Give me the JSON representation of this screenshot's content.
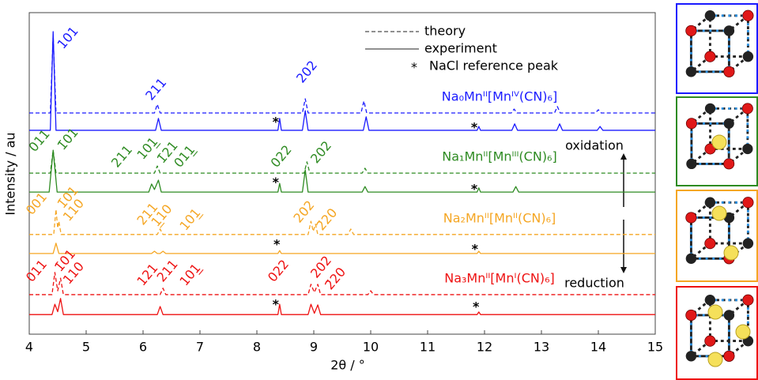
{
  "chart_data": {
    "type": "line",
    "xlabel": "2θ / °",
    "ylabel": "Intensity / au",
    "xlim": [
      4,
      15
    ],
    "xticks": [
      4,
      5,
      6,
      7,
      8,
      9,
      10,
      11,
      12,
      13,
      14,
      15
    ],
    "ylim": [
      0,
      100
    ],
    "legend": {
      "theory": "theory",
      "experiment": "experiment",
      "marker": "*",
      "reference": "NaCl reference peak"
    },
    "oxidation": "oxidation",
    "reduction": "reduction",
    "traces": [
      {
        "label": "Na₀Mnᴵᴵ[Mnᴵⱽ(CN)₆]",
        "color": "#1a1aff",
        "theory": {
          "x": [
            4,
            4.37,
            4.42,
            4.47,
            6.2,
            6.25,
            6.3,
            8.8,
            8.85,
            8.9,
            9.83,
            9.88,
            9.93,
            12.47,
            12.52,
            12.57,
            13.23,
            13.28,
            13.33,
            13.95,
            14.0,
            14.05,
            15
          ],
          "values": [
            68.8,
            68.8,
            92.9,
            68.8,
            68.8,
            71.5,
            68.8,
            68.8,
            73.2,
            68.8,
            68.8,
            72.5,
            68.8,
            68.8,
            70.0,
            68.8,
            68.8,
            70.8,
            68.8,
            68.8,
            69.8,
            68.8,
            68.8
          ]
        },
        "experiment": {
          "x": [
            4,
            4.37,
            4.42,
            4.47,
            6.22,
            6.27,
            6.32,
            8.37,
            8.4,
            8.43,
            8.8,
            8.85,
            8.9,
            9.87,
            9.92,
            9.97,
            11.87,
            11.9,
            11.93,
            12.48,
            12.53,
            12.58,
            13.27,
            13.32,
            13.37,
            13.98,
            14.03,
            14.08,
            15
          ],
          "values": [
            63.4,
            63.4,
            94.1,
            63.4,
            63.4,
            67.1,
            63.4,
            63.4,
            67.1,
            63.4,
            63.4,
            69.5,
            63.4,
            63.4,
            67.6,
            63.4,
            63.4,
            64.6,
            63.4,
            63.4,
            65.4,
            63.4,
            63.4,
            65.4,
            63.4,
            63.4,
            64.6,
            63.4,
            63.4
          ]
        },
        "reference_peaks": [
          {
            "x": 8.33,
            "y": 65.8
          },
          {
            "x": 11.82,
            "y": 64.1
          }
        ],
        "annotations": [
          {
            "text": "101",
            "x": 4.55,
            "y": 89.2
          },
          {
            "text": "211",
            "x": 6.1,
            "y": 73.2
          },
          {
            "text": "202",
            "x": 8.75,
            "y": 78.6
          }
        ]
      },
      {
        "label": "Na₁Mnᴵᴵ[Mnᴵᴵᴵ(CN)₆]",
        "color": "#2e8b22",
        "theory": {
          "x": [
            4,
            4.37,
            4.42,
            4.47,
            6.2,
            6.25,
            6.3,
            8.83,
            8.88,
            8.93,
            9.85,
            9.9,
            9.95,
            15
          ],
          "values": [
            50.1,
            50.1,
            57.2,
            50.1,
            50.1,
            52.3,
            50.1,
            50.1,
            53.6,
            50.1,
            50.1,
            51.6,
            50.1,
            50.1
          ]
        },
        "experiment": {
          "x": [
            4,
            4.35,
            4.42,
            4.49,
            6.1,
            6.15,
            6.2,
            6.27,
            6.32,
            8.37,
            8.4,
            8.43,
            8.8,
            8.85,
            8.9,
            9.85,
            9.9,
            9.95,
            11.87,
            11.9,
            11.93,
            12.5,
            12.55,
            12.6,
            15
          ],
          "values": [
            44.2,
            44.2,
            57.2,
            44.2,
            44.2,
            46.7,
            45.0,
            47.9,
            44.2,
            44.2,
            46.9,
            44.2,
            44.2,
            51.1,
            44.2,
            44.2,
            45.9,
            44.2,
            44.2,
            45.5,
            44.2,
            44.2,
            45.9,
            44.2,
            44.2
          ]
        },
        "reference_peaks": [
          {
            "x": 8.33,
            "y": 47.0
          },
          {
            "x": 11.82,
            "y": 45.0
          }
        ],
        "annotations": [
          {
            "text": "011",
            "x": 4.05,
            "y": 57.2
          },
          {
            "text": "1̄01",
            "x": 4.55,
            "y": 57.7
          },
          {
            "text": "211",
            "x": 5.5,
            "y": 52.3
          },
          {
            "text": "101̲",
            "x": 5.95,
            "y": 54.8
          },
          {
            "text": "1̄21",
            "x": 6.3,
            "y": 53.6
          },
          {
            "text": "011̲",
            "x": 6.6,
            "y": 52.3
          },
          {
            "text": "022",
            "x": 8.3,
            "y": 52.3
          },
          {
            "text": "202",
            "x": 9.0,
            "y": 53.6
          }
        ]
      },
      {
        "label": "Na₂Mnᴵᴵ[Mnᴵᴵ(CN)₆]",
        "color": "#f5a623",
        "theory": {
          "x": [
            4,
            4.43,
            4.47,
            4.5,
            4.52,
            4.56,
            6.25,
            6.3,
            6.35,
            8.9,
            8.95,
            8.99,
            9.03,
            9.07,
            9.6,
            9.65,
            9.7,
            15
          ],
          "values": [
            31.0,
            31.0,
            38.8,
            33.0,
            35.1,
            31.0,
            31.0,
            32.7,
            31.0,
            31.0,
            35.1,
            32.0,
            34.2,
            31.0,
            31.0,
            32.7,
            31.0,
            31.0
          ]
        },
        "experiment": {
          "x": [
            4,
            4.42,
            4.47,
            4.52,
            6.15,
            6.2,
            6.25,
            6.3,
            6.35,
            6.4,
            8.37,
            8.4,
            8.43,
            11.87,
            11.9,
            11.93,
            15
          ],
          "values": [
            25.1,
            25.1,
            28.3,
            25.1,
            25.1,
            25.8,
            25.1,
            25.1,
            25.8,
            25.1,
            25.1,
            26.0,
            25.1,
            25.1,
            25.8,
            25.1,
            25.1
          ]
        },
        "reference_peaks": [
          {
            "x": 8.35,
            "y": 27.8
          },
          {
            "x": 11.83,
            "y": 26.3
          }
        ],
        "annotations": [
          {
            "text": "001",
            "x": 4.0,
            "y": 37.6
          },
          {
            "text": "1̄01",
            "x": 4.55,
            "y": 39.6
          },
          {
            "text": "110",
            "x": 4.65,
            "y": 35.6
          },
          {
            "text": "211",
            "x": 5.95,
            "y": 34.4
          },
          {
            "text": "1̲10",
            "x": 6.2,
            "y": 33.9
          },
          {
            "text": "101̲",
            "x": 6.7,
            "y": 32.7
          },
          {
            "text": "202",
            "x": 8.7,
            "y": 35.1
          },
          {
            "text": "2̄20",
            "x": 9.1,
            "y": 32.7
          }
        ]
      },
      {
        "label": "Na₃Mnᴵᴵ[Mnᴵ(CN)₆]",
        "color": "#ee1111",
        "theory": {
          "x": [
            4,
            4.4,
            4.45,
            4.5,
            4.55,
            4.6,
            6.3,
            6.35,
            6.4,
            8.9,
            8.95,
            9.01,
            9.07,
            9.12,
            9.95,
            10.0,
            10.05,
            15
          ],
          "values": [
            12.3,
            12.3,
            19.2,
            13.5,
            17.4,
            12.3,
            12.3,
            14.3,
            12.3,
            12.3,
            15.5,
            13.0,
            15.5,
            12.3,
            12.3,
            13.5,
            12.3,
            12.3
          ]
        },
        "experiment": {
          "x": [
            4,
            4.4,
            4.45,
            4.5,
            4.55,
            4.6,
            6.25,
            6.3,
            6.35,
            8.37,
            8.4,
            8.43,
            8.9,
            8.95,
            9.01,
            9.07,
            9.12,
            11.87,
            11.9,
            11.93,
            15
          ],
          "values": [
            6.1,
            6.1,
            9.3,
            7.0,
            11.1,
            6.1,
            6.1,
            8.6,
            6.1,
            6.1,
            9.3,
            6.1,
            6.1,
            9.3,
            6.5,
            9.1,
            6.1,
            6.1,
            6.9,
            6.1,
            6.1
          ]
        },
        "reference_peaks": [
          {
            "x": 8.33,
            "y": 9.1
          },
          {
            "x": 11.85,
            "y": 8.4
          }
        ],
        "annotations": [
          {
            "text": "011",
            "x": 4.0,
            "y": 16.7
          },
          {
            "text": "1̄01",
            "x": 4.5,
            "y": 19.9
          },
          {
            "text": "110",
            "x": 4.65,
            "y": 16.0
          },
          {
            "text": "121",
            "x": 5.95,
            "y": 15.5
          },
          {
            "text": "211",
            "x": 6.3,
            "y": 16.7
          },
          {
            "text": "101̲",
            "x": 6.7,
            "y": 15.5
          },
          {
            "text": "022",
            "x": 8.25,
            "y": 16.7
          },
          {
            "text": "202",
            "x": 9.0,
            "y": 17.9
          },
          {
            "text": "2̄20",
            "x": 9.25,
            "y": 14.3
          }
        ]
      }
    ]
  }
}
